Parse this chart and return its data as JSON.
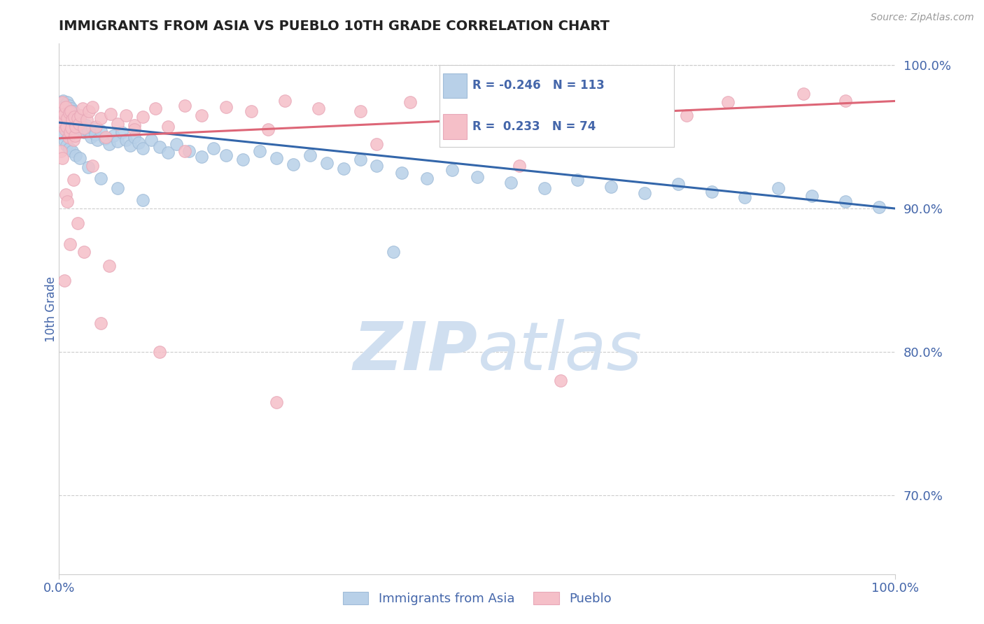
{
  "title": "IMMIGRANTS FROM ASIA VS PUEBLO 10TH GRADE CORRELATION CHART",
  "source_text": "Source: ZipAtlas.com",
  "ylabel": "10th Grade",
  "xlim": [
    0.0,
    1.0
  ],
  "ylim": [
    0.645,
    1.015
  ],
  "xtick_positions": [
    0.0,
    1.0
  ],
  "xtick_labels": [
    "0.0%",
    "100.0%"
  ],
  "ytick_values": [
    0.7,
    0.8,
    0.9,
    1.0
  ],
  "ytick_labels": [
    "70.0%",
    "80.0%",
    "90.0%",
    "100.0%"
  ],
  "blue_r": -0.246,
  "blue_n": 113,
  "pink_r": 0.233,
  "pink_n": 74,
  "blue_color": "#b8d0e8",
  "blue_edge_color": "#a0bcd8",
  "blue_line_color": "#3366aa",
  "pink_color": "#f5bfc8",
  "pink_edge_color": "#e8a8b8",
  "pink_line_color": "#dd6677",
  "legend_blue_label": "Immigrants from Asia",
  "legend_pink_label": "Pueblo",
  "blue_line_x0": 0.0,
  "blue_line_x1": 1.0,
  "blue_line_y0": 0.96,
  "blue_line_y1": 0.9,
  "pink_line_x0": 0.0,
  "pink_line_x1": 1.0,
  "pink_line_y0": 0.949,
  "pink_line_y1": 0.975,
  "watermark_text": "ZIPatlas",
  "watermark_color": "#d0dff0",
  "grid_color": "#cccccc",
  "axis_color": "#cccccc",
  "axis_label_color": "#4466aa",
  "tick_label_color": "#4466aa",
  "blue_scatter_x": [
    0.001,
    0.002,
    0.002,
    0.003,
    0.003,
    0.004,
    0.005,
    0.005,
    0.006,
    0.006,
    0.007,
    0.007,
    0.008,
    0.008,
    0.009,
    0.01,
    0.01,
    0.011,
    0.012,
    0.012,
    0.013,
    0.013,
    0.014,
    0.014,
    0.015,
    0.015,
    0.016,
    0.016,
    0.017,
    0.018,
    0.019,
    0.02,
    0.02,
    0.021,
    0.022,
    0.023,
    0.025,
    0.026,
    0.028,
    0.03,
    0.032,
    0.035,
    0.038,
    0.04,
    0.043,
    0.046,
    0.05,
    0.055,
    0.06,
    0.065,
    0.07,
    0.075,
    0.08,
    0.085,
    0.09,
    0.095,
    0.1,
    0.11,
    0.12,
    0.13,
    0.14,
    0.155,
    0.17,
    0.185,
    0.2,
    0.22,
    0.24,
    0.26,
    0.28,
    0.3,
    0.32,
    0.34,
    0.36,
    0.38,
    0.41,
    0.44,
    0.47,
    0.5,
    0.54,
    0.58,
    0.62,
    0.66,
    0.7,
    0.74,
    0.78,
    0.82,
    0.86,
    0.9,
    0.94,
    0.98,
    0.003,
    0.005,
    0.007,
    0.009,
    0.012,
    0.016,
    0.02,
    0.025,
    0.035,
    0.05,
    0.07,
    0.1,
    0.4
  ],
  "blue_scatter_y": [
    0.965,
    0.963,
    0.97,
    0.96,
    0.968,
    0.962,
    0.975,
    0.957,
    0.966,
    0.972,
    0.959,
    0.967,
    0.963,
    0.97,
    0.956,
    0.968,
    0.974,
    0.961,
    0.965,
    0.972,
    0.958,
    0.964,
    0.96,
    0.967,
    0.963,
    0.97,
    0.956,
    0.962,
    0.968,
    0.96,
    0.965,
    0.958,
    0.964,
    0.957,
    0.963,
    0.959,
    0.955,
    0.961,
    0.957,
    0.953,
    0.958,
    0.954,
    0.95,
    0.956,
    0.952,
    0.948,
    0.954,
    0.949,
    0.945,
    0.951,
    0.947,
    0.953,
    0.948,
    0.944,
    0.95,
    0.946,
    0.942,
    0.948,
    0.943,
    0.939,
    0.945,
    0.94,
    0.936,
    0.942,
    0.937,
    0.934,
    0.94,
    0.935,
    0.931,
    0.937,
    0.932,
    0.928,
    0.934,
    0.93,
    0.925,
    0.921,
    0.927,
    0.922,
    0.918,
    0.914,
    0.92,
    0.915,
    0.911,
    0.917,
    0.912,
    0.908,
    0.914,
    0.909,
    0.905,
    0.901,
    0.958,
    0.952,
    0.947,
    0.944,
    0.942,
    0.94,
    0.937,
    0.935,
    0.929,
    0.921,
    0.914,
    0.906,
    0.87
  ],
  "pink_scatter_x": [
    0.001,
    0.002,
    0.003,
    0.004,
    0.005,
    0.006,
    0.007,
    0.008,
    0.009,
    0.01,
    0.011,
    0.012,
    0.013,
    0.014,
    0.015,
    0.016,
    0.017,
    0.018,
    0.019,
    0.02,
    0.022,
    0.024,
    0.026,
    0.028,
    0.03,
    0.033,
    0.036,
    0.04,
    0.044,
    0.05,
    0.056,
    0.062,
    0.07,
    0.08,
    0.09,
    0.1,
    0.115,
    0.13,
    0.15,
    0.17,
    0.2,
    0.23,
    0.27,
    0.31,
    0.36,
    0.42,
    0.48,
    0.55,
    0.63,
    0.71,
    0.8,
    0.89,
    0.002,
    0.004,
    0.006,
    0.008,
    0.01,
    0.013,
    0.017,
    0.022,
    0.03,
    0.04,
    0.06,
    0.09,
    0.15,
    0.25,
    0.38,
    0.55,
    0.75,
    0.94,
    0.05,
    0.12,
    0.26,
    0.6
  ],
  "pink_scatter_y": [
    0.969,
    0.964,
    0.958,
    0.974,
    0.96,
    0.966,
    0.955,
    0.971,
    0.957,
    0.963,
    0.95,
    0.967,
    0.953,
    0.968,
    0.956,
    0.962,
    0.948,
    0.964,
    0.951,
    0.957,
    0.963,
    0.959,
    0.965,
    0.97,
    0.956,
    0.962,
    0.968,
    0.971,
    0.957,
    0.963,
    0.95,
    0.966,
    0.959,
    0.965,
    0.958,
    0.964,
    0.97,
    0.957,
    0.972,
    0.965,
    0.971,
    0.968,
    0.975,
    0.97,
    0.968,
    0.974,
    0.97,
    0.966,
    0.972,
    0.968,
    0.974,
    0.98,
    0.94,
    0.935,
    0.85,
    0.91,
    0.905,
    0.875,
    0.92,
    0.89,
    0.87,
    0.93,
    0.86,
    0.955,
    0.94,
    0.955,
    0.945,
    0.93,
    0.965,
    0.975,
    0.82,
    0.8,
    0.765,
    0.78
  ]
}
